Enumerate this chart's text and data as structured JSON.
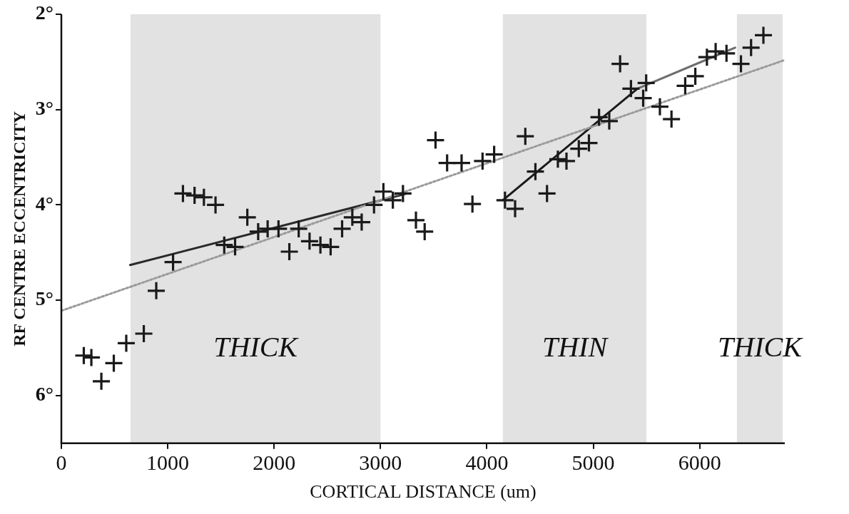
{
  "chart_data": {
    "type": "scatter",
    "xlabel": "CORTICAL DISTANCE (um)",
    "ylabel": "RF CENTRE ECCENTRICITY",
    "xlim": [
      0,
      6800
    ],
    "xticks": [
      0,
      1000,
      2000,
      3000,
      4000,
      5000,
      6000
    ],
    "ylim": [
      6.5,
      2
    ],
    "yticks": [
      {
        "value": 2,
        "label": "2°"
      },
      {
        "value": 3,
        "label": "3°"
      },
      {
        "value": 4,
        "label": "4°"
      },
      {
        "value": 5,
        "label": "5°"
      },
      {
        "value": 6,
        "label": "6°"
      }
    ],
    "grid": false,
    "legend": false,
    "marker": "cross",
    "bands": [
      {
        "axis": "x",
        "from": 650,
        "to": 3000,
        "label": "THICK",
        "color": "#e2e2e2"
      },
      {
        "axis": "x",
        "from": 4150,
        "to": 5500,
        "label": "THIN",
        "color": "#e2e2e2"
      },
      {
        "axis": "x",
        "from": 6350,
        "to": 6780,
        "label": "THICK",
        "color": "#e2e2e2"
      }
    ],
    "series": [
      {
        "color": "#1a1a1a",
        "x": [
          211,
          282,
          376,
          493,
          610,
          775,
          892,
          1050,
          1143,
          1252,
          1340,
          1449,
          1531,
          1633,
          1748,
          1850,
          1939,
          2041,
          2143,
          2231,
          2333,
          2435,
          2531,
          2639,
          2735,
          2823,
          2939,
          3027,
          3116,
          3211,
          3333,
          3415,
          3517,
          3626,
          3762,
          3864,
          3959,
          4068,
          4170,
          4265,
          4361,
          4456,
          4565,
          4667,
          4748,
          4864,
          4959,
          5054,
          5150,
          5252,
          5354,
          5469,
          5497,
          5626,
          5735,
          5864,
          5959,
          6068,
          6150,
          6252,
          6388,
          6483,
          6599
        ],
        "values": [
          5.58,
          5.6,
          5.85,
          5.66,
          5.45,
          5.35,
          4.9,
          4.6,
          3.88,
          3.9,
          3.92,
          4.0,
          4.42,
          4.44,
          4.13,
          4.28,
          4.25,
          4.25,
          4.49,
          4.25,
          4.38,
          4.42,
          4.44,
          4.25,
          4.13,
          4.18,
          4.0,
          3.86,
          3.95,
          3.88,
          4.16,
          4.28,
          3.32,
          3.56,
          3.56,
          3.99,
          3.54,
          3.47,
          3.95,
          4.04,
          3.28,
          3.65,
          3.88,
          3.52,
          3.54,
          3.41,
          3.35,
          3.08,
          3.12,
          2.52,
          2.78,
          2.88,
          2.72,
          2.97,
          3.1,
          2.75,
          2.65,
          2.45,
          2.39,
          2.41,
          2.52,
          2.35,
          2.22
        ]
      },
      {
        "type": "line",
        "color": "#9a9a9a",
        "line_style": "dotted",
        "marker": "none",
        "x": [
          0,
          6800
        ],
        "values": [
          5.11,
          2.48
        ]
      },
      {
        "type": "line",
        "color": "#2a2a2a",
        "line_style": "solid",
        "marker": "none",
        "x": [
          646,
          3252
        ],
        "values": [
          4.63,
          3.88
        ]
      },
      {
        "type": "line",
        "color": "#1a1a1a",
        "line_style": "solid",
        "marker": "none",
        "x": [
          4150,
          5415
        ],
        "values": [
          3.95,
          2.78
        ]
      },
      {
        "type": "line",
        "color": "#6e6e6e",
        "line_style": "solid",
        "marker": "none",
        "x": [
          5415,
          6333
        ],
        "values": [
          2.78,
          2.35
        ]
      }
    ]
  }
}
